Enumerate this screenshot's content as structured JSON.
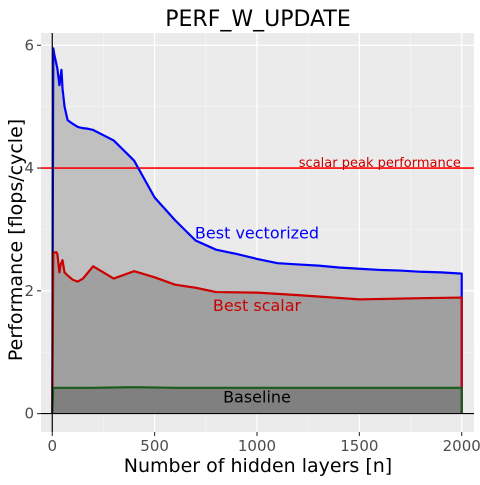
{
  "chart_data": {
    "type": "line",
    "title": "PERF_W_UPDATE",
    "xlabel": "Number of hidden layers [n]",
    "ylabel": "Performance [flops/cycle]",
    "xlim": [
      -55,
      2060
    ],
    "ylim": [
      -0.3,
      6.2
    ],
    "x_ticks": [
      0,
      500,
      1000,
      1500,
      2000
    ],
    "y_ticks": [
      0,
      2,
      4,
      6
    ],
    "grid": true,
    "legend": "none",
    "series": [
      {
        "name": "Best vectorized",
        "color": "#0000ff",
        "fill": "#c0c0c0",
        "x": [
          0,
          5,
          10,
          25,
          35,
          45,
          50,
          60,
          75,
          100,
          125,
          150,
          175,
          200,
          300,
          400,
          500,
          600,
          700,
          800,
          900,
          1000,
          1100,
          1200,
          1300,
          1400,
          1500,
          1600,
          1700,
          1800,
          1900,
          2000
        ],
        "y": [
          0,
          5.95,
          5.85,
          5.62,
          5.35,
          5.6,
          5.3,
          5.0,
          4.78,
          4.72,
          4.67,
          4.65,
          4.64,
          4.62,
          4.45,
          4.12,
          3.52,
          3.15,
          2.82,
          2.67,
          2.6,
          2.52,
          2.45,
          2.43,
          2.41,
          2.38,
          2.36,
          2.34,
          2.33,
          2.31,
          2.3,
          2.28
        ]
      },
      {
        "name": "Best scalar",
        "color": "#cc0000",
        "fill": "#a0a0a0",
        "x": [
          0,
          5,
          20,
          25,
          35,
          40,
          50,
          60,
          75,
          100,
          125,
          150,
          200,
          300,
          400,
          500,
          600,
          700,
          800,
          1000,
          1200,
          1500,
          1800,
          2000
        ],
        "y": [
          0,
          2.62,
          2.63,
          2.6,
          2.3,
          2.42,
          2.5,
          2.3,
          2.25,
          2.18,
          2.15,
          2.2,
          2.4,
          2.2,
          2.32,
          2.22,
          2.1,
          2.05,
          1.98,
          1.97,
          1.93,
          1.86,
          1.88,
          1.89
        ]
      },
      {
        "name": "Baseline",
        "color": "#1a5c1a",
        "fill": "#808080",
        "x": [
          0,
          5,
          100,
          200,
          400,
          600,
          800,
          1000,
          1200,
          1500,
          1800,
          2000
        ],
        "y": [
          0,
          0.42,
          0.42,
          0.42,
          0.43,
          0.42,
          0.42,
          0.42,
          0.42,
          0.42,
          0.42,
          0.42
        ]
      }
    ],
    "reference_lines": [
      {
        "label": "scalar peak performance",
        "y": 4,
        "color": "#ff0000"
      }
    ],
    "annotations": [
      {
        "text": "Best vectorized",
        "x": 1000,
        "y": 2.93,
        "color": "#0000ff"
      },
      {
        "text": "Best scalar",
        "x": 1000,
        "y": 1.75,
        "color": "#cc0000"
      },
      {
        "text": "Baseline",
        "x": 1000,
        "y": 0.26,
        "color": "#000000"
      },
      {
        "text": "scalar peak performance",
        "x": 1600,
        "y": 4.1,
        "color": "#cc0000"
      }
    ]
  }
}
